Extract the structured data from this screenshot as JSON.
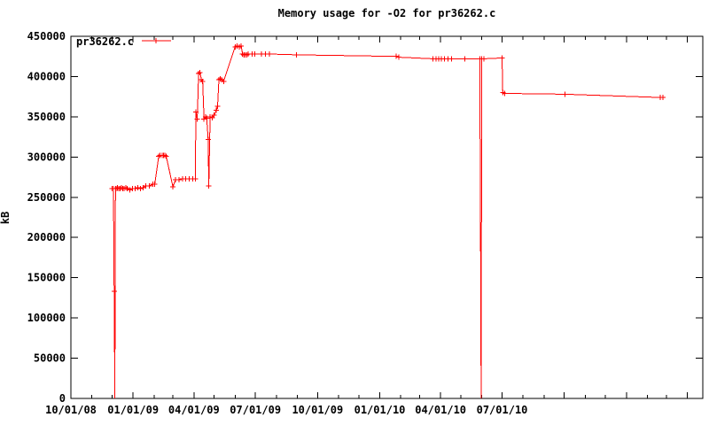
{
  "window": {
    "title": "Memory usage for -O2 for pr36262.c"
  },
  "chart_data": {
    "type": "line",
    "title": "Memory usage for -O2 for pr36262.c",
    "xlabel": "",
    "ylabel": "kB",
    "ylim": [
      0,
      450000
    ],
    "y_tick_step": 50000,
    "x_range": [
      "2008-10-01",
      "2011-04-24"
    ],
    "x_tick_labels": [
      {
        "date": "2008-10-01",
        "label": "10/01/08"
      },
      {
        "date": "2009-01-01",
        "label": "01/01/09"
      },
      {
        "date": "2009-04-01",
        "label": "04/01/09"
      },
      {
        "date": "2009-07-01",
        "label": "07/01/09"
      },
      {
        "date": "2009-10-01",
        "label": "10/01/09"
      },
      {
        "date": "2010-01-01",
        "label": "01/01/10"
      },
      {
        "date": "2010-04-01",
        "label": "04/01/10"
      },
      {
        "date": "2010-07-01",
        "label": "07/01/10"
      }
    ],
    "grid": false,
    "legend_position": "top-left-inside",
    "colors": {
      "series": "#ff0000",
      "axis": "#000000",
      "background": "#ffffff"
    },
    "series": [
      {
        "name": "pr36262.c",
        "marker": "plus",
        "points": [
          [
            "2008-12-01",
            261000
          ],
          [
            "2008-12-03",
            261000
          ],
          [
            "2008-12-04",
            133000
          ],
          [
            "2008-12-05",
            0,
            0
          ],
          [
            "2008-12-06",
            261000
          ],
          [
            "2008-12-08",
            261000
          ],
          [
            "2008-12-09",
            262000
          ],
          [
            "2008-12-11",
            261000
          ],
          [
            "2008-12-13",
            261000
          ],
          [
            "2008-12-15",
            262000
          ],
          [
            "2008-12-17",
            261000
          ],
          [
            "2008-12-19",
            261000
          ],
          [
            "2008-12-21",
            262000
          ],
          [
            "2008-12-23",
            261000
          ],
          [
            "2008-12-27",
            259000
          ],
          [
            "2008-12-31",
            261000
          ],
          [
            "2009-01-04",
            261000
          ],
          [
            "2009-01-08",
            262000
          ],
          [
            "2009-01-12",
            261000
          ],
          [
            "2009-01-16",
            262000
          ],
          [
            "2009-01-20",
            264000
          ],
          [
            "2009-01-25",
            264000
          ],
          [
            "2009-01-30",
            266000
          ],
          [
            "2009-02-02",
            266000
          ],
          [
            "2009-02-08",
            301000
          ],
          [
            "2009-02-10",
            302000
          ],
          [
            "2009-02-13",
            302000
          ],
          [
            "2009-02-15",
            302000
          ],
          [
            "2009-02-17",
            302000
          ],
          [
            "2009-02-19",
            301000
          ],
          [
            "2009-03-01",
            263000
          ],
          [
            "2009-03-05",
            272000
          ],
          [
            "2009-03-10",
            272000
          ],
          [
            "2009-03-15",
            273000
          ],
          [
            "2009-03-20",
            273000
          ],
          [
            "2009-03-25",
            273000
          ],
          [
            "2009-03-30",
            273000
          ],
          [
            "2009-04-03",
            273000
          ],
          [
            "2009-04-04",
            356000
          ],
          [
            "2009-04-06",
            347000
          ],
          [
            "2009-04-08",
            404000
          ],
          [
            "2009-04-10",
            405000
          ],
          [
            "2009-04-12",
            396000
          ],
          [
            "2009-04-14",
            394000
          ],
          [
            "2009-04-16",
            347000
          ],
          [
            "2009-04-18",
            350000
          ],
          [
            "2009-04-20",
            348000
          ],
          [
            "2009-04-22",
            322000
          ],
          [
            "2009-04-23",
            264000
          ],
          [
            "2009-04-25",
            350000
          ],
          [
            "2009-04-28",
            349000
          ],
          [
            "2009-05-01",
            352000
          ],
          [
            "2009-05-04",
            358000
          ],
          [
            "2009-05-06",
            363000
          ],
          [
            "2009-05-08",
            396000
          ],
          [
            "2009-05-10",
            397000
          ],
          [
            "2009-05-12",
            396000
          ],
          [
            "2009-05-15",
            394000
          ],
          [
            "2009-06-01",
            437000
          ],
          [
            "2009-06-04",
            438000
          ],
          [
            "2009-06-07",
            437000
          ],
          [
            "2009-06-10",
            438000
          ],
          [
            "2009-06-12",
            428000
          ],
          [
            "2009-06-14",
            427000
          ],
          [
            "2009-06-16",
            427000
          ],
          [
            "2009-06-18",
            427000
          ],
          [
            "2009-06-20",
            428000
          ],
          [
            "2009-06-26",
            428000
          ],
          [
            "2009-06-30",
            428000
          ],
          [
            "2009-07-10",
            428000
          ],
          [
            "2009-07-16",
            428000
          ],
          [
            "2009-07-22",
            428000
          ],
          [
            "2009-08-31",
            427000
          ],
          [
            "2010-01-25",
            425000
          ],
          [
            "2010-01-29",
            424000
          ],
          [
            "2010-03-21",
            422000
          ],
          [
            "2010-03-25",
            422000
          ],
          [
            "2010-03-29",
            422000
          ],
          [
            "2010-04-02",
            422000
          ],
          [
            "2010-04-07",
            422000
          ],
          [
            "2010-04-12",
            422000
          ],
          [
            "2010-04-17",
            422000
          ],
          [
            "2010-05-07",
            422000
          ],
          [
            "2010-05-29",
            422000
          ],
          [
            "2010-05-31",
            0,
            0
          ],
          [
            "2010-06-01",
            422000
          ],
          [
            "2010-06-04",
            422000
          ],
          [
            "2010-07-01",
            423000
          ],
          [
            "2010-07-02",
            380000
          ],
          [
            "2010-07-05",
            379000
          ],
          [
            "2010-10-02",
            378000
          ],
          [
            "2011-02-20",
            374000
          ],
          [
            "2011-02-24",
            374000
          ]
        ]
      }
    ]
  }
}
